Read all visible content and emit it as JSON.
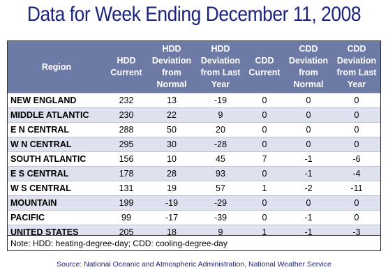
{
  "title": "Data for Week Ending December 11, 2008",
  "headers": {
    "region": "Region",
    "hdd_current": [
      "HDD",
      "Current"
    ],
    "hdd_dev_normal": [
      "HDD",
      "Deviation",
      "from",
      "Normal"
    ],
    "hdd_dev_last": [
      "HDD",
      "Deviation",
      "from Last",
      "Year"
    ],
    "cdd_current": [
      "CDD",
      "Current"
    ],
    "cdd_dev_normal": [
      "CDD",
      "Deviation",
      "from",
      "Normal"
    ],
    "cdd_dev_last": [
      "CDD",
      "Deviation",
      "from Last",
      "Year"
    ]
  },
  "rows": [
    {
      "region": "NEW ENGLAND",
      "hdd_current": "232",
      "hdd_dev_normal": "13",
      "hdd_dev_last": "-19",
      "cdd_current": "0",
      "cdd_dev_normal": "0",
      "cdd_dev_last": "0"
    },
    {
      "region": "MIDDLE ATLANTIC",
      "hdd_current": "230",
      "hdd_dev_normal": "22",
      "hdd_dev_last": "9",
      "cdd_current": "0",
      "cdd_dev_normal": "0",
      "cdd_dev_last": "0"
    },
    {
      "region": "E N CENTRAL",
      "hdd_current": "288",
      "hdd_dev_normal": "50",
      "hdd_dev_last": "20",
      "cdd_current": "0",
      "cdd_dev_normal": "0",
      "cdd_dev_last": "0"
    },
    {
      "region": "W N CENTRAL",
      "hdd_current": "295",
      "hdd_dev_normal": "30",
      "hdd_dev_last": "-28",
      "cdd_current": "0",
      "cdd_dev_normal": "0",
      "cdd_dev_last": "0"
    },
    {
      "region": "SOUTH ATLANTIC",
      "hdd_current": "156",
      "hdd_dev_normal": "10",
      "hdd_dev_last": "45",
      "cdd_current": "7",
      "cdd_dev_normal": "-1",
      "cdd_dev_last": "-6"
    },
    {
      "region": "E S CENTRAL",
      "hdd_current": "178",
      "hdd_dev_normal": "28",
      "hdd_dev_last": "93",
      "cdd_current": "0",
      "cdd_dev_normal": "-1",
      "cdd_dev_last": "-4"
    },
    {
      "region": "W S CENTRAL",
      "hdd_current": "131",
      "hdd_dev_normal": "19",
      "hdd_dev_last": "57",
      "cdd_current": "1",
      "cdd_dev_normal": "-2",
      "cdd_dev_last": "-11"
    },
    {
      "region": "MOUNTAIN",
      "hdd_current": "199",
      "hdd_dev_normal": "-19",
      "hdd_dev_last": "-29",
      "cdd_current": "0",
      "cdd_dev_normal": "0",
      "cdd_dev_last": "0"
    },
    {
      "region": "PACIFIC",
      "hdd_current": "99",
      "hdd_dev_normal": "-17",
      "hdd_dev_last": "-39",
      "cdd_current": "0",
      "cdd_dev_normal": "-1",
      "cdd_dev_last": "0"
    },
    {
      "region": "UNITED STATES",
      "hdd_current": "205",
      "hdd_dev_normal": "18",
      "hdd_dev_last": "9",
      "cdd_current": "1",
      "cdd_dev_normal": "-1",
      "cdd_dev_last": "-3"
    }
  ],
  "note": "Note: HDD: heating-degree-day; CDD: cooling-degree-day",
  "source": "Source:  National Oceanic and Atmospheric Administration, National Weather Service",
  "colors": {
    "title": "#1a237e",
    "header_bg": "#6e7aa6",
    "row_alt": "#dde2ee"
  }
}
